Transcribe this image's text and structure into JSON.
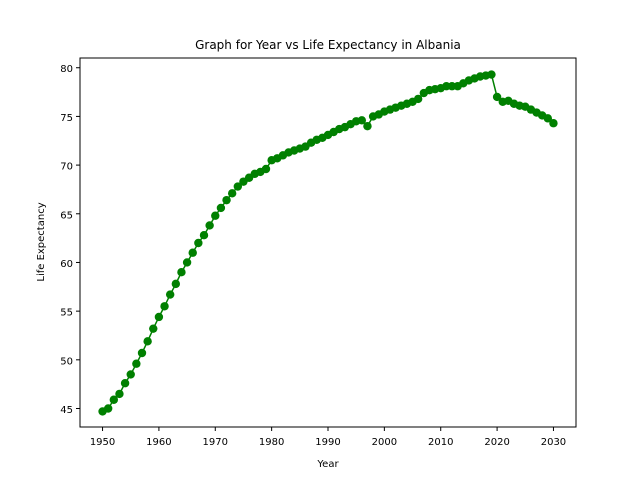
{
  "chart_data": {
    "type": "line",
    "title": "Graph for Year vs Life Expectancy in Albania",
    "xlabel": "Year",
    "ylabel": "Life Expectancy",
    "xlim": [
      1946,
      2034
    ],
    "ylim": [
      43.1,
      81.0
    ],
    "xticks": [
      1950,
      1960,
      1970,
      1980,
      1990,
      2000,
      2010,
      2020,
      2030
    ],
    "yticks": [
      45,
      50,
      55,
      60,
      65,
      70,
      75,
      80
    ],
    "grid": false,
    "marker": "circle",
    "color": "#008000",
    "series": [
      {
        "x": [
          1950,
          1951,
          1952,
          1953,
          1954,
          1955,
          1956,
          1957,
          1958,
          1959,
          1960,
          1961,
          1962,
          1963,
          1964,
          1965,
          1966,
          1967,
          1968,
          1969,
          1970,
          1971,
          1972,
          1973,
          1974,
          1975,
          1976,
          1977,
          1978,
          1979,
          1980,
          1981,
          1982,
          1983,
          1984,
          1985,
          1986,
          1987,
          1988,
          1989,
          1990,
          1991,
          1992,
          1993,
          1994,
          1995,
          1996,
          1997,
          1998,
          1999,
          2000,
          2001,
          2002,
          2003,
          2004,
          2005,
          2006,
          2007,
          2008,
          2009,
          2010,
          2011,
          2012,
          2013,
          2014,
          2015,
          2016,
          2017,
          2018,
          2019,
          2020,
          2021,
          2022,
          2023,
          2024,
          2025,
          2026,
          2027,
          2028,
          2029,
          2030
        ],
        "values": [
          44.7,
          45.0,
          45.9,
          46.5,
          47.6,
          48.5,
          49.6,
          50.7,
          51.9,
          53.2,
          54.4,
          55.5,
          56.7,
          57.8,
          59.0,
          60.0,
          61.0,
          62.0,
          62.8,
          63.8,
          64.8,
          65.6,
          66.4,
          67.1,
          67.8,
          68.3,
          68.7,
          69.1,
          69.3,
          69.6,
          70.5,
          70.7,
          71.0,
          71.3,
          71.5,
          71.7,
          71.9,
          72.3,
          72.6,
          72.8,
          73.1,
          73.4,
          73.7,
          73.9,
          74.2,
          74.5,
          74.6,
          74.0,
          75.0,
          75.2,
          75.5,
          75.7,
          75.9,
          76.1,
          76.3,
          76.5,
          76.8,
          77.4,
          77.7,
          77.8,
          77.9,
          78.1,
          78.1,
          78.1,
          78.4,
          78.7,
          78.9,
          79.1,
          79.2,
          79.3,
          77.0,
          76.5,
          76.6,
          76.3,
          76.1,
          76.0,
          75.7,
          75.4,
          75.1,
          74.8,
          74.3
        ]
      }
    ]
  }
}
